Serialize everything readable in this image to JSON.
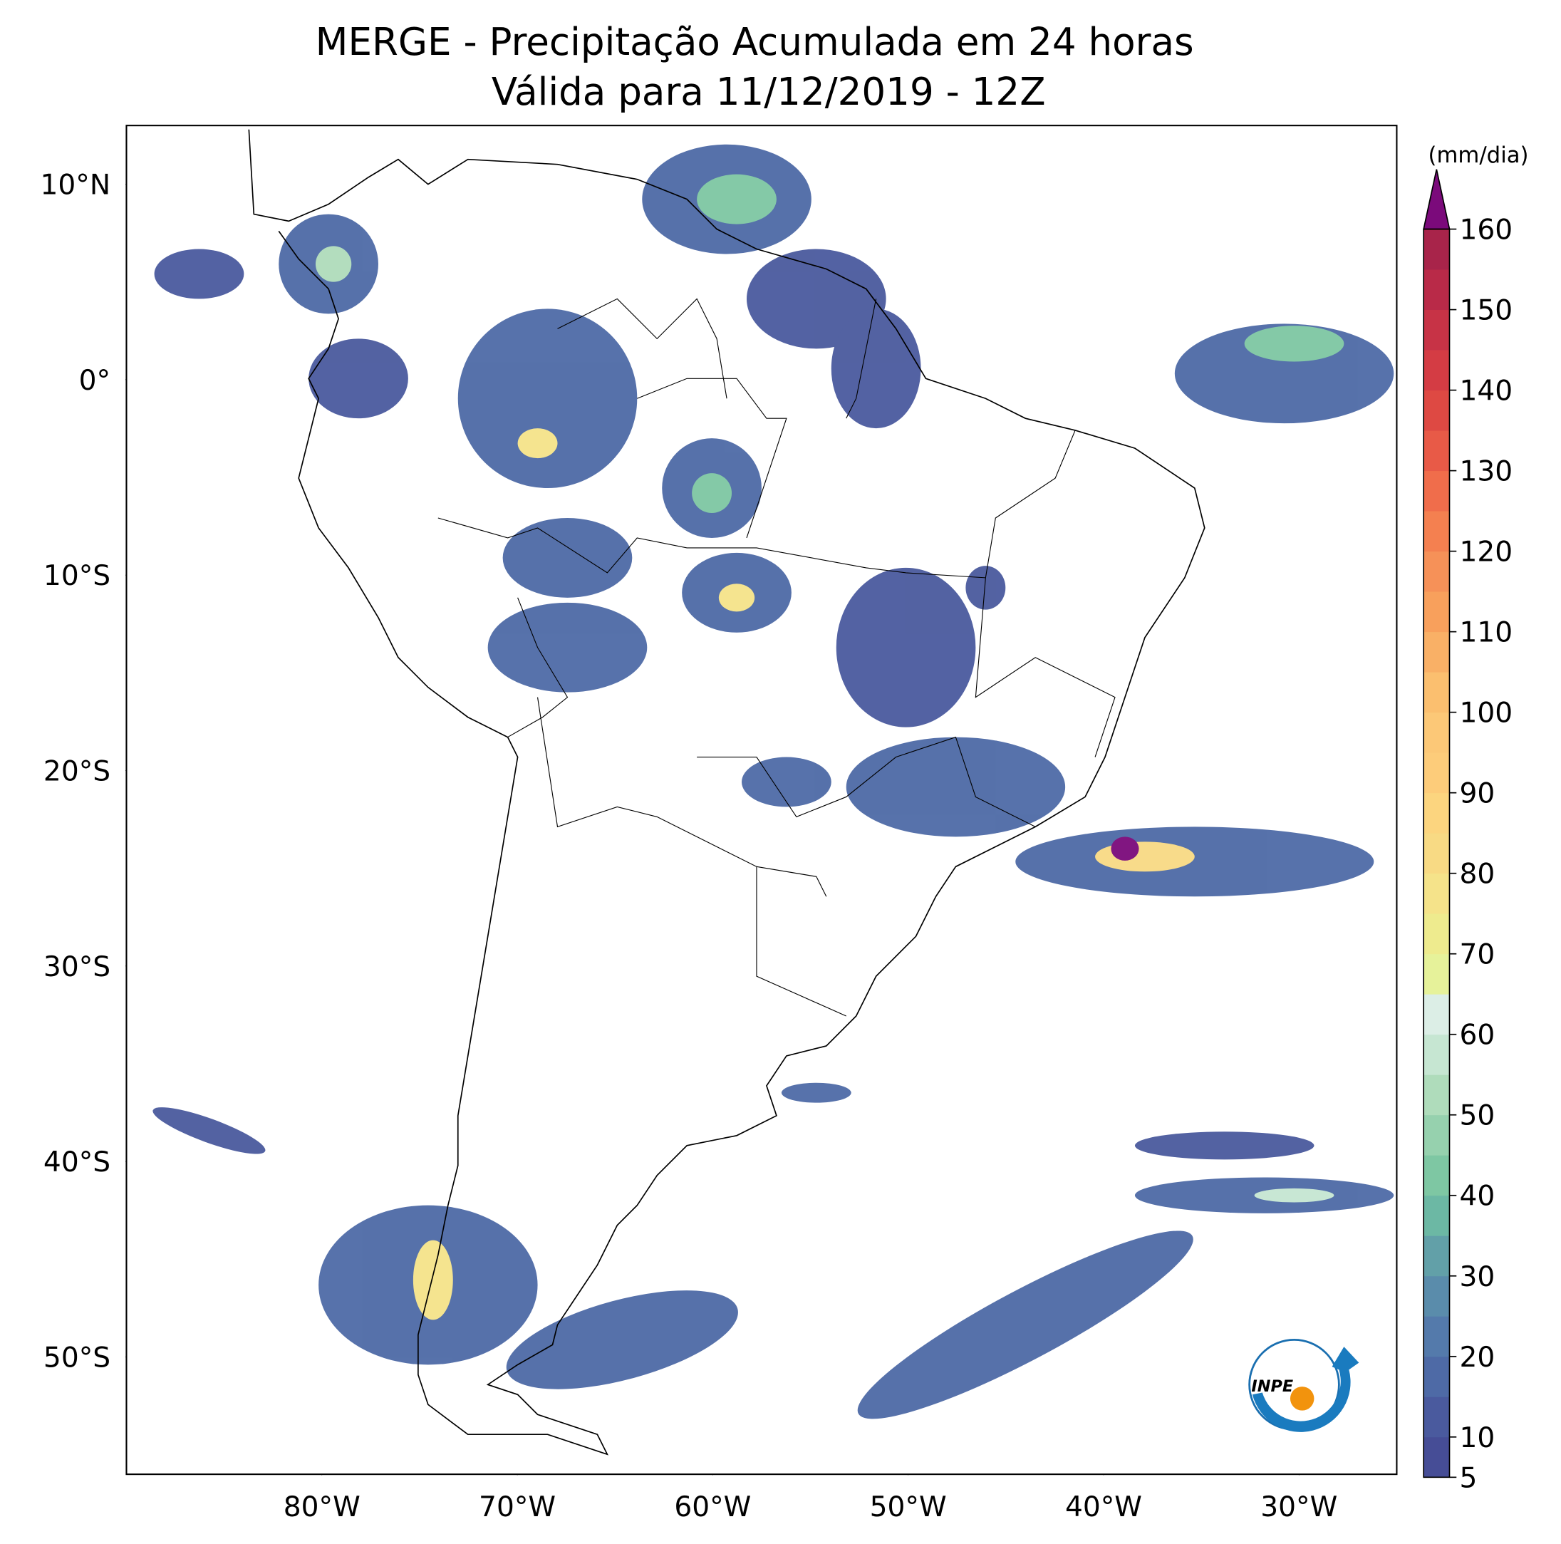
{
  "chart_data": {
    "type": "map",
    "title": "MERGE - Precipitação Acumulada em 24 horas",
    "subtitle": "Válida para 11/12/2019 - 12Z",
    "xlim": [
      -90,
      -25
    ],
    "ylim": [
      -56,
      13
    ],
    "xticks": [
      {
        "value": -80,
        "label": "80°W"
      },
      {
        "value": -70,
        "label": "70°W"
      },
      {
        "value": -60,
        "label": "60°W"
      },
      {
        "value": -50,
        "label": "50°W"
      },
      {
        "value": -40,
        "label": "40°W"
      },
      {
        "value": -30,
        "label": "30°W"
      }
    ],
    "yticks": [
      {
        "value": 10,
        "label": "10°N"
      },
      {
        "value": 0,
        "label": "0°"
      },
      {
        "value": -10,
        "label": "10°S"
      },
      {
        "value": -20,
        "label": "20°S"
      },
      {
        "value": -30,
        "label": "30°S"
      },
      {
        "value": -40,
        "label": "40°S"
      },
      {
        "value": -50,
        "label": "50°S"
      }
    ],
    "colorbar": {
      "label": "(mm/dia)",
      "levels": [
        5,
        10,
        15,
        20,
        25,
        30,
        35,
        40,
        45,
        50,
        55,
        60,
        65,
        70,
        75,
        80,
        85,
        90,
        95,
        100,
        105,
        110,
        115,
        120,
        125,
        130,
        135,
        140,
        145,
        150,
        155,
        160
      ],
      "colors": [
        "#464d96",
        "#4a5a9e",
        "#4e6aa6",
        "#547aab",
        "#5a8cab",
        "#62a0a8",
        "#6cb8a4",
        "#7ec7a3",
        "#96d1ae",
        "#afdcbb",
        "#c6e6d2",
        "#dceee6",
        "#e6f29a",
        "#eeeb8e",
        "#f5e38a",
        "#f8da84",
        "#fcd57f",
        "#fdcc7a",
        "#fcc877",
        "#fbbf6f",
        "#f9b066",
        "#f8a05c",
        "#f69158",
        "#f48050",
        "#f06d4b",
        "#e85a47",
        "#de4943",
        "#d43c44",
        "#c73346",
        "#b92a48",
        "#a8244a"
      ],
      "extend_color": "#7b0a7b",
      "ticks": [
        5,
        10,
        20,
        30,
        40,
        50,
        60,
        70,
        80,
        90,
        100,
        110,
        120,
        130,
        140,
        150,
        160
      ]
    }
  },
  "logo": {
    "text": "INPE"
  }
}
